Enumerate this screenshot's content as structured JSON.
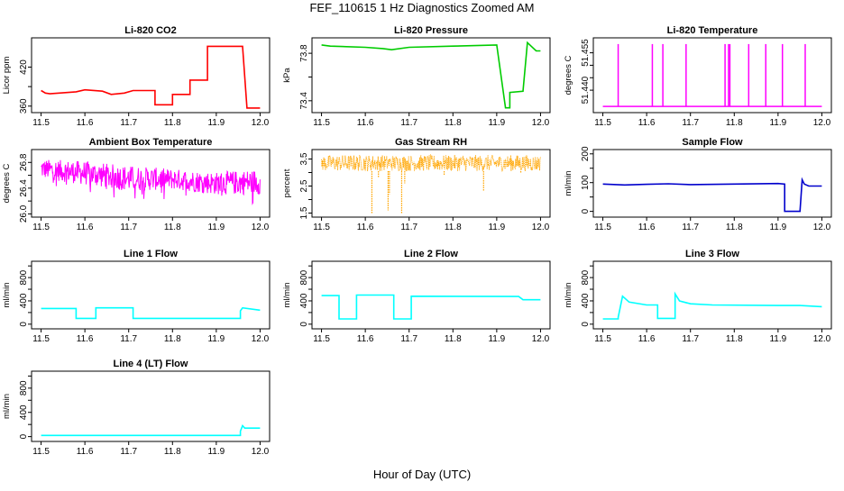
{
  "figure": {
    "title": "FEF_110615  1 Hz Diagnostics Zoomed AM",
    "xlabel": "Hour of Day (UTC)"
  },
  "colors": {
    "red": "#ff0000",
    "green": "#00cc00",
    "magenta": "#ff00ff",
    "orange": "#ffa500",
    "blue": "#0000cc",
    "cyan": "#00ffff",
    "axis": "#000000"
  },
  "chart_data": [
    {
      "type": "line",
      "title": "Li-820 CO2",
      "ylabel": "Licor ppm",
      "color": "red",
      "xlim": [
        11.5,
        12.0
      ],
      "ylim": [
        350,
        465
      ],
      "yticks": [
        360,
        390,
        420
      ],
      "ytick_labels": [
        "360",
        "",
        "420"
      ],
      "xticks": [
        11.5,
        11.6,
        11.7,
        11.8,
        11.9,
        12.0
      ],
      "x": [
        11.5,
        11.51,
        11.52,
        11.58,
        11.6,
        11.64,
        11.66,
        11.69,
        11.71,
        11.76,
        11.76,
        11.8,
        11.8,
        11.84,
        11.84,
        11.88,
        11.88,
        11.96,
        11.97,
        12.0
      ],
      "y": [
        384,
        380,
        379,
        382,
        385,
        383,
        378,
        380,
        384,
        384,
        362,
        362,
        378,
        378,
        400,
        400,
        452,
        452,
        357,
        357
      ]
    },
    {
      "type": "line",
      "title": "Li-820 Pressure",
      "ylabel": "kPa",
      "color": "green",
      "xlim": [
        11.5,
        12.0
      ],
      "ylim": [
        73.3,
        73.93
      ],
      "yticks": [
        73.4,
        73.6,
        73.8
      ],
      "ytick_labels": [
        "73.4",
        "",
        "73.8"
      ],
      "xticks": [
        11.5,
        11.6,
        11.7,
        11.8,
        11.9,
        12.0
      ],
      "x": [
        11.5,
        11.52,
        11.6,
        11.64,
        11.66,
        11.7,
        11.8,
        11.9,
        11.92,
        11.93,
        11.93,
        11.96,
        11.97,
        11.99,
        12.0
      ],
      "y": [
        73.87,
        73.86,
        73.85,
        73.84,
        73.83,
        73.85,
        73.86,
        73.87,
        73.34,
        73.34,
        73.47,
        73.48,
        73.89,
        73.82,
        73.82
      ]
    },
    {
      "type": "line",
      "title": "Li-820 Temperature",
      "ylabel": "degrees C",
      "color": "magenta",
      "xlim": [
        11.5,
        12.0
      ],
      "ylim": [
        51.431,
        51.461
      ],
      "yticks": [
        51.44,
        51.445,
        51.45,
        51.455
      ],
      "ytick_labels": [
        "51.440",
        "",
        "",
        "51.455"
      ],
      "xticks": [
        11.5,
        11.6,
        11.7,
        11.8,
        11.9,
        12.0
      ],
      "baseline": 51.4335,
      "spike_top": 51.4585,
      "spikes_x": [
        11.535,
        11.613,
        11.637,
        11.69,
        11.779,
        11.787,
        11.79,
        11.833,
        11.872,
        11.91,
        11.962
      ]
    },
    {
      "type": "line",
      "title": "Ambient Box Temperature",
      "ylabel": "degrees C",
      "color": "magenta",
      "xlim": [
        11.5,
        12.0
      ],
      "ylim": [
        25.95,
        27.0
      ],
      "yticks": [
        26.0,
        26.2,
        26.4,
        26.6,
        26.8
      ],
      "ytick_labels": [
        "26.0",
        "",
        "26.4",
        "",
        "26.8"
      ],
      "xticks": [
        11.5,
        11.6,
        11.7,
        11.8,
        11.9,
        12.0
      ],
      "band": {
        "x": [
          11.5,
          11.6,
          11.7,
          11.8,
          11.9,
          12.0
        ],
        "low": [
          26.55,
          26.45,
          26.35,
          26.38,
          26.3,
          26.3
        ],
        "high": [
          26.85,
          26.82,
          26.75,
          26.7,
          26.65,
          26.7
        ]
      }
    },
    {
      "type": "line",
      "title": "Gas Stream RH",
      "ylabel": "percent",
      "color": "orange",
      "xlim": [
        11.5,
        12.0
      ],
      "ylim": [
        1.35,
        3.85
      ],
      "yticks": [
        1.5,
        2.0,
        2.5,
        3.0,
        3.5
      ],
      "ytick_labels": [
        "1.5",
        "",
        "2.5",
        "",
        "3.5"
      ],
      "xticks": [
        11.5,
        11.6,
        11.7,
        11.8,
        11.9,
        12.0
      ],
      "band": {
        "low": 3.05,
        "high": 3.65
      },
      "dips": [
        [
          11.615,
          1.5
        ],
        [
          11.63,
          2.8
        ],
        [
          11.652,
          1.6
        ],
        [
          11.655,
          2.2
        ],
        [
          11.683,
          1.5
        ],
        [
          11.69,
          2.6
        ],
        [
          11.78,
          2.9
        ],
        [
          11.87,
          2.3
        ],
        [
          11.955,
          3.0
        ]
      ]
    },
    {
      "type": "line",
      "title": "Sample Flow",
      "ylabel": "ml/min",
      "color": "blue",
      "xlim": [
        11.5,
        12.0
      ],
      "ylim": [
        -20,
        215
      ],
      "yticks": [
        0,
        50,
        100,
        150,
        200
      ],
      "ytick_labels": [
        "0",
        "",
        "100",
        "",
        "200"
      ],
      "xticks": [
        11.5,
        11.6,
        11.7,
        11.8,
        11.9,
        12.0
      ],
      "x": [
        11.5,
        11.55,
        11.6,
        11.65,
        11.7,
        11.8,
        11.9,
        11.915,
        11.915,
        11.95,
        11.955,
        11.96,
        11.97,
        12.0
      ],
      "y": [
        95,
        92,
        94,
        96,
        93,
        95,
        97,
        95,
        0,
        0,
        110,
        95,
        88,
        88
      ]
    },
    {
      "type": "line",
      "title": "Line 1 Flow",
      "ylabel": "ml/min",
      "color": "cyan",
      "xlim": [
        11.5,
        12.0
      ],
      "ylim": [
        -80,
        1080
      ],
      "yticks": [
        0,
        200,
        400,
        600,
        800,
        1000
      ],
      "ytick_labels": [
        "0",
        "",
        "400",
        "",
        "800",
        ""
      ],
      "xticks": [
        11.5,
        11.6,
        11.7,
        11.8,
        11.9,
        12.0
      ],
      "x": [
        11.5,
        11.58,
        11.58,
        11.625,
        11.625,
        11.71,
        11.71,
        11.955,
        11.955,
        11.96,
        12.0
      ],
      "y": [
        270,
        270,
        100,
        100,
        280,
        280,
        100,
        100,
        230,
        280,
        240
      ]
    },
    {
      "type": "line",
      "title": "Line 2 Flow",
      "ylabel": "ml/min",
      "color": "cyan",
      "xlim": [
        11.5,
        12.0
      ],
      "ylim": [
        -80,
        1080
      ],
      "yticks": [
        0,
        200,
        400,
        600,
        800,
        1000
      ],
      "ytick_labels": [
        "0",
        "",
        "400",
        "",
        "800",
        ""
      ],
      "xticks": [
        11.5,
        11.6,
        11.7,
        11.8,
        11.9,
        12.0
      ],
      "x": [
        11.5,
        11.54,
        11.54,
        11.58,
        11.58,
        11.665,
        11.665,
        11.705,
        11.705,
        11.95,
        11.96,
        12.0
      ],
      "y": [
        490,
        490,
        90,
        90,
        500,
        500,
        90,
        90,
        480,
        475,
        420,
        420
      ]
    },
    {
      "type": "line",
      "title": "Line 3 Flow",
      "ylabel": "ml/min",
      "color": "cyan",
      "xlim": [
        11.5,
        12.0
      ],
      "ylim": [
        -80,
        1080
      ],
      "yticks": [
        0,
        200,
        400,
        600,
        800,
        1000
      ],
      "ytick_labels": [
        "0",
        "",
        "400",
        "",
        "800",
        ""
      ],
      "xticks": [
        11.5,
        11.6,
        11.7,
        11.8,
        11.9,
        12.0
      ],
      "x": [
        11.5,
        11.535,
        11.535,
        11.545,
        11.56,
        11.6,
        11.625,
        11.625,
        11.665,
        11.665,
        11.675,
        11.7,
        11.75,
        11.9,
        11.95,
        12.0
      ],
      "y": [
        90,
        90,
        120,
        480,
        380,
        330,
        330,
        100,
        100,
        520,
        400,
        350,
        330,
        320,
        320,
        300
      ]
    },
    {
      "type": "line",
      "title": "Line 4 (LT) Flow",
      "ylabel": "ml/min",
      "color": "cyan",
      "xlim": [
        11.5,
        12.0
      ],
      "ylim": [
        -80,
        1080
      ],
      "yticks": [
        0,
        200,
        400,
        600,
        800,
        1000
      ],
      "ytick_labels": [
        "0",
        "",
        "400",
        "",
        "800",
        ""
      ],
      "xticks": [
        11.5,
        11.6,
        11.7,
        11.8,
        11.9,
        12.0
      ],
      "x": [
        11.5,
        11.6,
        11.7,
        11.8,
        11.9,
        11.955,
        11.955,
        11.96,
        11.965,
        12.0
      ],
      "y": [
        20,
        20,
        20,
        20,
        20,
        20,
        90,
        180,
        140,
        140
      ]
    }
  ]
}
